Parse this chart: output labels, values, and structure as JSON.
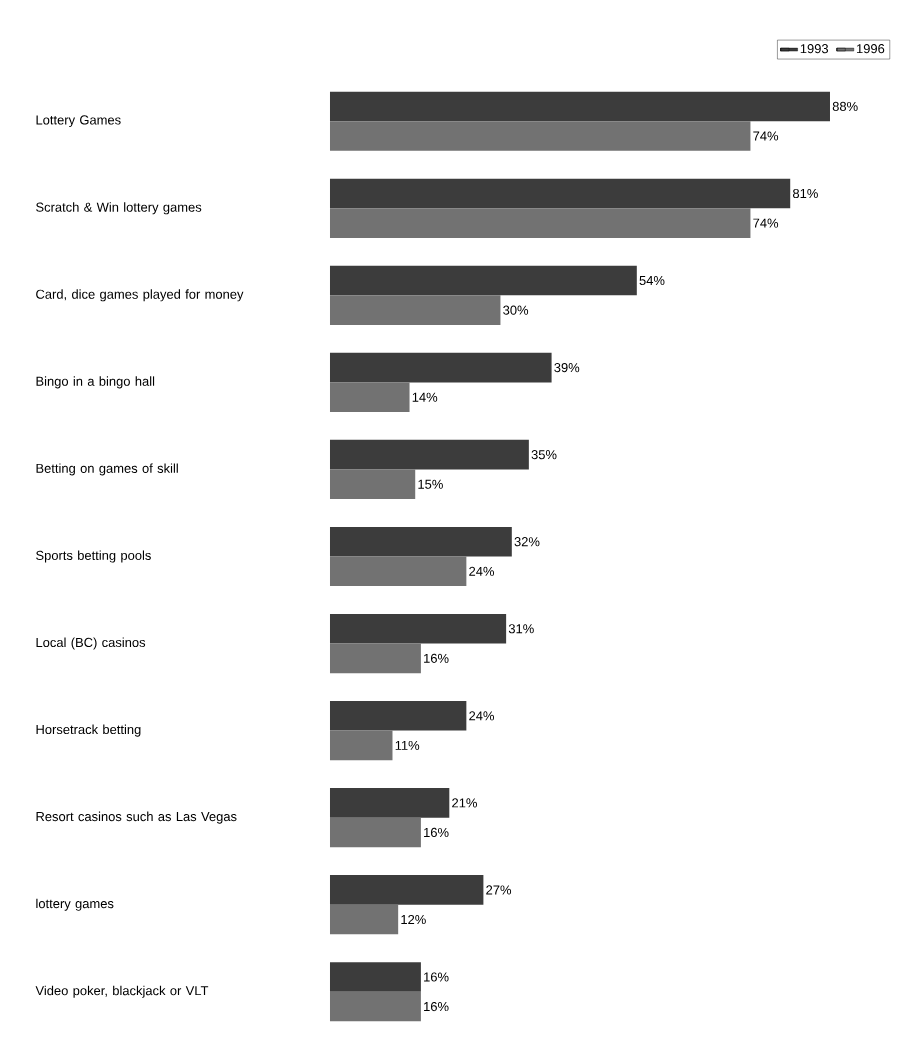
{
  "chart_data": {
    "type": "bar",
    "orientation": "horizontal",
    "categories": [
      "Lottery Games",
      "Scratch & Win lottery games",
      "Card, dice games played for money",
      "Bingo in a bingo hall",
      "Betting on games of skill",
      "Sports betting pools",
      "Local (BC) casinos",
      "Horsetrack betting",
      "Resort casinos such as Las Vegas",
      "lottery games",
      "Video poker, blackjack or VLT"
    ],
    "series": [
      {
        "name": "1993",
        "color": "#3c3c3c",
        "values": [
          88,
          81,
          54,
          39,
          35,
          32,
          31,
          24,
          21,
          27,
          16
        ],
        "value_labels": [
          "88%",
          "81%",
          "54%",
          "39%",
          "35%",
          "32%",
          "31%",
          "24%",
          "21%",
          "27%",
          "16%"
        ]
      },
      {
        "name": "1996",
        "color": "#727272",
        "values": [
          74,
          74,
          30,
          14,
          15,
          24,
          16,
          11,
          16,
          12,
          16
        ],
        "value_labels": [
          "74%",
          "74%",
          "30%",
          "14%",
          "15%",
          "24%",
          "16%",
          "11%",
          "16%",
          "12%",
          "16%"
        ]
      }
    ],
    "legend": "top right"
  }
}
